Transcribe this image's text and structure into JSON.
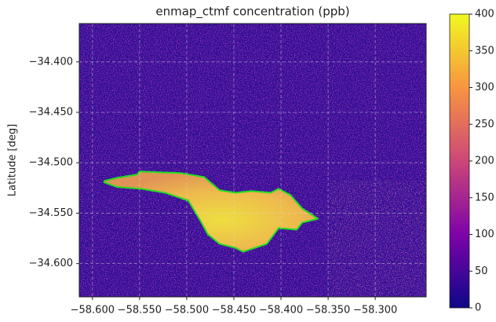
{
  "chart_data": {
    "type": "image",
    "title": "enmap_ctmf concentration (ppb)",
    "ylabel": "Latitude [deg]",
    "xlim": [
      -58.614,
      -58.246
    ],
    "ylim": [
      -34.633,
      -34.362
    ],
    "xticks": [
      {
        "value": -58.6,
        "label": "−58.600"
      },
      {
        "value": -58.55,
        "label": "−58.550"
      },
      {
        "value": -58.5,
        "label": "−58.500"
      },
      {
        "value": -58.45,
        "label": "−58.450"
      },
      {
        "value": -58.4,
        "label": "−58.400"
      },
      {
        "value": -58.35,
        "label": "−58.350"
      },
      {
        "value": -58.3,
        "label": "−58.300"
      }
    ],
    "yticks": [
      {
        "value": -34.4,
        "label": "−34.400"
      },
      {
        "value": -34.45,
        "label": "−34.450"
      },
      {
        "value": -34.5,
        "label": "−34.500"
      },
      {
        "value": -34.55,
        "label": "−34.550"
      },
      {
        "value": -34.6,
        "label": "−34.600"
      }
    ],
    "grid": true,
    "clim": [
      0,
      400
    ],
    "cticks": [
      0,
      50,
      100,
      150,
      200,
      250,
      300,
      350,
      400
    ],
    "colormap": [
      "#0d0887",
      "#7e03a8",
      "#cc4778",
      "#f89540",
      "#f0f921"
    ],
    "outline": {
      "color": "#22dd22",
      "x": [
        -58.5875,
        -58.5733,
        -58.5525,
        -58.55,
        -58.5317,
        -58.5067,
        -58.4817,
        -58.465,
        -58.4483,
        -58.4317,
        -58.4108,
        -58.4025,
        -58.39,
        -58.3775,
        -58.3608,
        -58.3775,
        -58.3833,
        -58.4025,
        -58.415,
        -58.44,
        -58.4483,
        -58.465,
        -58.4775,
        -58.4858,
        -58.4983,
        -58.5233,
        -58.5483,
        -58.5733,
        -58.5875
      ],
      "y": [
        -34.518,
        -34.5148,
        -34.5117,
        -34.5086,
        -34.5094,
        -34.5102,
        -34.5141,
        -34.5273,
        -34.5297,
        -34.5281,
        -34.5297,
        -34.5258,
        -34.532,
        -34.5453,
        -34.5555,
        -34.5594,
        -34.5664,
        -34.5648,
        -34.5805,
        -34.5883,
        -34.5844,
        -34.5805,
        -34.5711,
        -34.557,
        -34.5375,
        -34.5297,
        -34.5258,
        -34.5242,
        -34.5195
      ]
    }
  }
}
